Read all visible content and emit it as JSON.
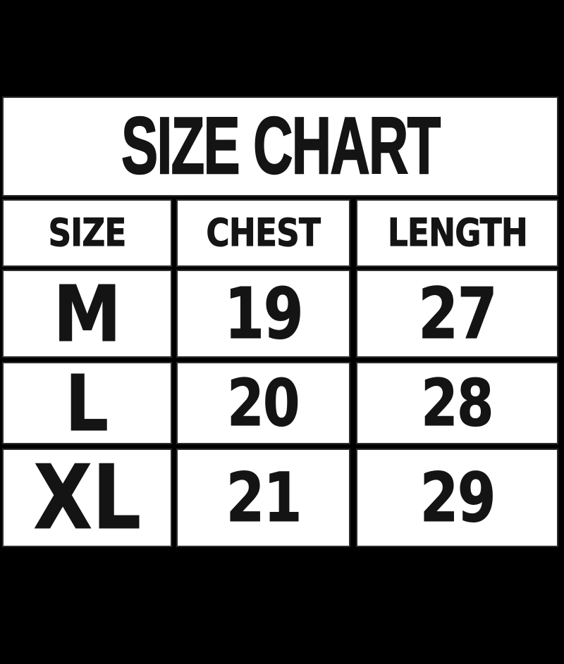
{
  "title": "SIZE CHART",
  "colors": {
    "background": "#000000",
    "cell_background": "#ffffff",
    "text": "#141414"
  },
  "chart_data": {
    "type": "table",
    "title": "SIZE CHART",
    "columns": [
      "SIZE",
      "CHEST",
      "LENGTH"
    ],
    "rows": [
      [
        "M",
        "19",
        "27"
      ],
      [
        "L",
        "20",
        "28"
      ],
      [
        "XL",
        "21",
        "29"
      ]
    ]
  }
}
